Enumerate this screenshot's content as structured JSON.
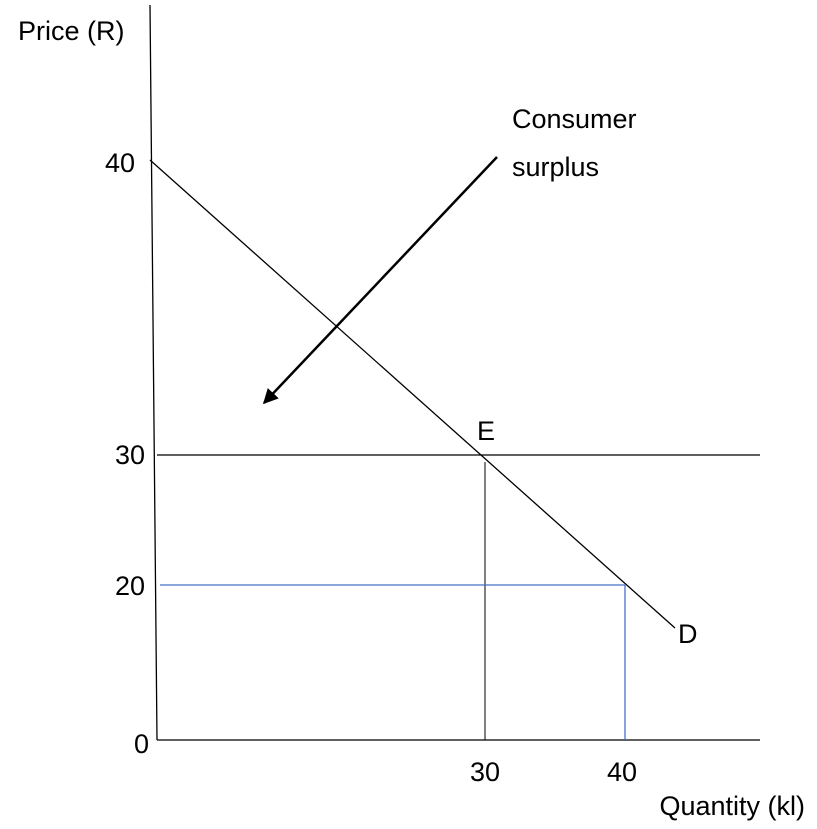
{
  "diagram": {
    "y_axis_label": "Price (R)",
    "x_axis_label": "Quantity (kl)",
    "y_ticks": [
      "40",
      "30",
      "20",
      "0"
    ],
    "x_ticks": [
      "30",
      "40"
    ],
    "equilibrium_label": "E",
    "demand_label": "D",
    "annotation": [
      "Consumer",
      "surplus"
    ]
  }
}
